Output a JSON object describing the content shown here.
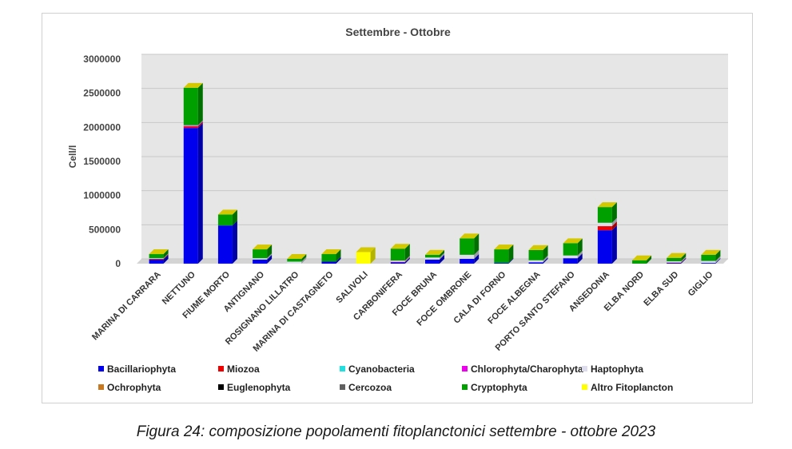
{
  "chart_data": {
    "type": "bar",
    "stacked": true,
    "title": "Settembre - Ottobre",
    "ylabel": "Cell/l",
    "xlabel": "",
    "ylim": [
      0,
      3000000
    ],
    "yticks": [
      0,
      500000,
      1000000,
      1500000,
      2000000,
      2500000,
      3000000
    ],
    "ytick_labels": [
      "0",
      "500000",
      "1000000",
      "1500000",
      "2000000",
      "2500000",
      "3000000"
    ],
    "categories": [
      "MARINA DI CARRARA",
      "NETTUNO",
      "FIUME MORTO",
      "ANTIGNANO",
      "ROSIGNANO LILLATRO",
      "MARINA DI CASTAGNETO",
      "SALIVOLI",
      "CARBONIFERA",
      "FOCE BRUNA",
      "FOCE OMBRONE",
      "CALA DI FORNO",
      "FOCE ALBEGNA",
      "PORTO SANTO STEFANO",
      "ANSEDONIA",
      "ELBA NORD",
      "ELBA SUD",
      "GIGLIO"
    ],
    "series": [
      {
        "name": "Bacillariophyta",
        "color": "#0000ee",
        "values": [
          60000,
          1990000,
          560000,
          60000,
          0,
          30000,
          0,
          20000,
          60000,
          70000,
          10000,
          20000,
          80000,
          490000,
          0,
          10000,
          10000
        ]
      },
      {
        "name": "Miozoa",
        "color": "#ee0000",
        "values": [
          10000,
          20000,
          0,
          0,
          0,
          0,
          0,
          5000,
          0,
          0,
          0,
          0,
          0,
          60000,
          0,
          5000,
          0
        ]
      },
      {
        "name": "Cyanobacteria",
        "color": "#22e0e0",
        "values": [
          0,
          0,
          0,
          0,
          0,
          0,
          0,
          0,
          0,
          0,
          0,
          0,
          0,
          0,
          0,
          0,
          0
        ]
      },
      {
        "name": "Chlorophyta/Charophyta",
        "color": "#ee00ee",
        "values": [
          0,
          10000,
          0,
          0,
          0,
          0,
          0,
          0,
          0,
          0,
          0,
          0,
          0,
          0,
          0,
          0,
          0
        ]
      },
      {
        "name": "Haptophyta",
        "color": "#dcdcec",
        "values": [
          10000,
          10000,
          0,
          20000,
          30000,
          0,
          0,
          20000,
          30000,
          60000,
          0,
          30000,
          40000,
          50000,
          0,
          20000,
          30000
        ]
      },
      {
        "name": "Ochrophyta",
        "color": "#c87820",
        "values": [
          0,
          0,
          0,
          0,
          0,
          0,
          0,
          0,
          0,
          0,
          0,
          0,
          0,
          0,
          0,
          0,
          0
        ]
      },
      {
        "name": "Euglenophyta",
        "color": "#000000",
        "values": [
          0,
          0,
          0,
          0,
          0,
          0,
          0,
          0,
          0,
          0,
          0,
          0,
          0,
          0,
          0,
          0,
          0
        ]
      },
      {
        "name": "Cercozoa",
        "color": "#606060",
        "values": [
          0,
          0,
          0,
          0,
          0,
          0,
          0,
          5000,
          0,
          0,
          0,
          0,
          0,
          0,
          0,
          0,
          0
        ]
      },
      {
        "name": "Cryptophyta",
        "color": "#00a000",
        "values": [
          60000,
          550000,
          160000,
          130000,
          40000,
          110000,
          0,
          170000,
          40000,
          240000,
          200000,
          150000,
          180000,
          230000,
          50000,
          50000,
          90000
        ]
      },
      {
        "name": "Altro Fitoplancton",
        "color": "#ffff00",
        "values": [
          0,
          0,
          0,
          0,
          0,
          0,
          170000,
          0,
          0,
          0,
          0,
          0,
          0,
          0,
          0,
          0,
          0
        ]
      }
    ]
  },
  "caption": "Figura 24: composizione popolamenti fitoplanctonici settembre - ottobre 2023"
}
